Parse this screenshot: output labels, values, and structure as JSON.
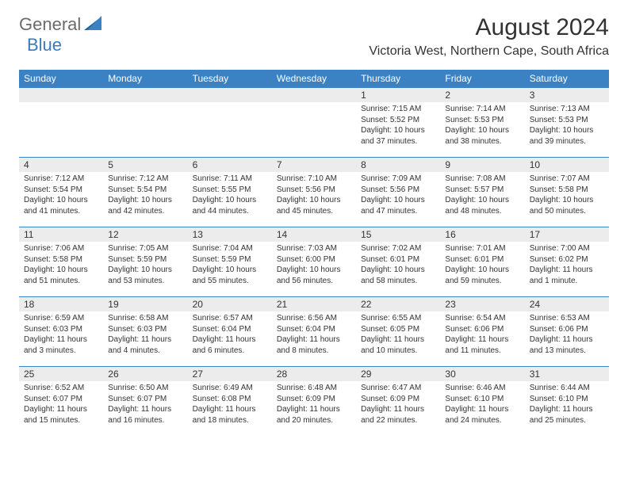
{
  "logo": {
    "part1": "General",
    "part2": "Blue"
  },
  "title": "August 2024",
  "location": "Victoria West, Northern Cape, South Africa",
  "colors": {
    "header_bg": "#3b82c4",
    "header_text": "#ffffff",
    "daynum_bg": "#ececec",
    "text": "#333333",
    "logo_gray": "#6b6b6b",
    "logo_blue": "#3b7bbf",
    "row_border": "#3b82c4"
  },
  "day_names": [
    "Sunday",
    "Monday",
    "Tuesday",
    "Wednesday",
    "Thursday",
    "Friday",
    "Saturday"
  ],
  "weeks": [
    [
      null,
      null,
      null,
      null,
      {
        "n": "1",
        "sr": "7:15 AM",
        "ss": "5:52 PM",
        "dl": "10 hours and 37 minutes."
      },
      {
        "n": "2",
        "sr": "7:14 AM",
        "ss": "5:53 PM",
        "dl": "10 hours and 38 minutes."
      },
      {
        "n": "3",
        "sr": "7:13 AM",
        "ss": "5:53 PM",
        "dl": "10 hours and 39 minutes."
      }
    ],
    [
      {
        "n": "4",
        "sr": "7:12 AM",
        "ss": "5:54 PM",
        "dl": "10 hours and 41 minutes."
      },
      {
        "n": "5",
        "sr": "7:12 AM",
        "ss": "5:54 PM",
        "dl": "10 hours and 42 minutes."
      },
      {
        "n": "6",
        "sr": "7:11 AM",
        "ss": "5:55 PM",
        "dl": "10 hours and 44 minutes."
      },
      {
        "n": "7",
        "sr": "7:10 AM",
        "ss": "5:56 PM",
        "dl": "10 hours and 45 minutes."
      },
      {
        "n": "8",
        "sr": "7:09 AM",
        "ss": "5:56 PM",
        "dl": "10 hours and 47 minutes."
      },
      {
        "n": "9",
        "sr": "7:08 AM",
        "ss": "5:57 PM",
        "dl": "10 hours and 48 minutes."
      },
      {
        "n": "10",
        "sr": "7:07 AM",
        "ss": "5:58 PM",
        "dl": "10 hours and 50 minutes."
      }
    ],
    [
      {
        "n": "11",
        "sr": "7:06 AM",
        "ss": "5:58 PM",
        "dl": "10 hours and 51 minutes."
      },
      {
        "n": "12",
        "sr": "7:05 AM",
        "ss": "5:59 PM",
        "dl": "10 hours and 53 minutes."
      },
      {
        "n": "13",
        "sr": "7:04 AM",
        "ss": "5:59 PM",
        "dl": "10 hours and 55 minutes."
      },
      {
        "n": "14",
        "sr": "7:03 AM",
        "ss": "6:00 PM",
        "dl": "10 hours and 56 minutes."
      },
      {
        "n": "15",
        "sr": "7:02 AM",
        "ss": "6:01 PM",
        "dl": "10 hours and 58 minutes."
      },
      {
        "n": "16",
        "sr": "7:01 AM",
        "ss": "6:01 PM",
        "dl": "10 hours and 59 minutes."
      },
      {
        "n": "17",
        "sr": "7:00 AM",
        "ss": "6:02 PM",
        "dl": "11 hours and 1 minute."
      }
    ],
    [
      {
        "n": "18",
        "sr": "6:59 AM",
        "ss": "6:03 PM",
        "dl": "11 hours and 3 minutes."
      },
      {
        "n": "19",
        "sr": "6:58 AM",
        "ss": "6:03 PM",
        "dl": "11 hours and 4 minutes."
      },
      {
        "n": "20",
        "sr": "6:57 AM",
        "ss": "6:04 PM",
        "dl": "11 hours and 6 minutes."
      },
      {
        "n": "21",
        "sr": "6:56 AM",
        "ss": "6:04 PM",
        "dl": "11 hours and 8 minutes."
      },
      {
        "n": "22",
        "sr": "6:55 AM",
        "ss": "6:05 PM",
        "dl": "11 hours and 10 minutes."
      },
      {
        "n": "23",
        "sr": "6:54 AM",
        "ss": "6:06 PM",
        "dl": "11 hours and 11 minutes."
      },
      {
        "n": "24",
        "sr": "6:53 AM",
        "ss": "6:06 PM",
        "dl": "11 hours and 13 minutes."
      }
    ],
    [
      {
        "n": "25",
        "sr": "6:52 AM",
        "ss": "6:07 PM",
        "dl": "11 hours and 15 minutes."
      },
      {
        "n": "26",
        "sr": "6:50 AM",
        "ss": "6:07 PM",
        "dl": "11 hours and 16 minutes."
      },
      {
        "n": "27",
        "sr": "6:49 AM",
        "ss": "6:08 PM",
        "dl": "11 hours and 18 minutes."
      },
      {
        "n": "28",
        "sr": "6:48 AM",
        "ss": "6:09 PM",
        "dl": "11 hours and 20 minutes."
      },
      {
        "n": "29",
        "sr": "6:47 AM",
        "ss": "6:09 PM",
        "dl": "11 hours and 22 minutes."
      },
      {
        "n": "30",
        "sr": "6:46 AM",
        "ss": "6:10 PM",
        "dl": "11 hours and 24 minutes."
      },
      {
        "n": "31",
        "sr": "6:44 AM",
        "ss": "6:10 PM",
        "dl": "11 hours and 25 minutes."
      }
    ]
  ],
  "labels": {
    "sunrise": "Sunrise: ",
    "sunset": "Sunset: ",
    "daylight": "Daylight: "
  }
}
